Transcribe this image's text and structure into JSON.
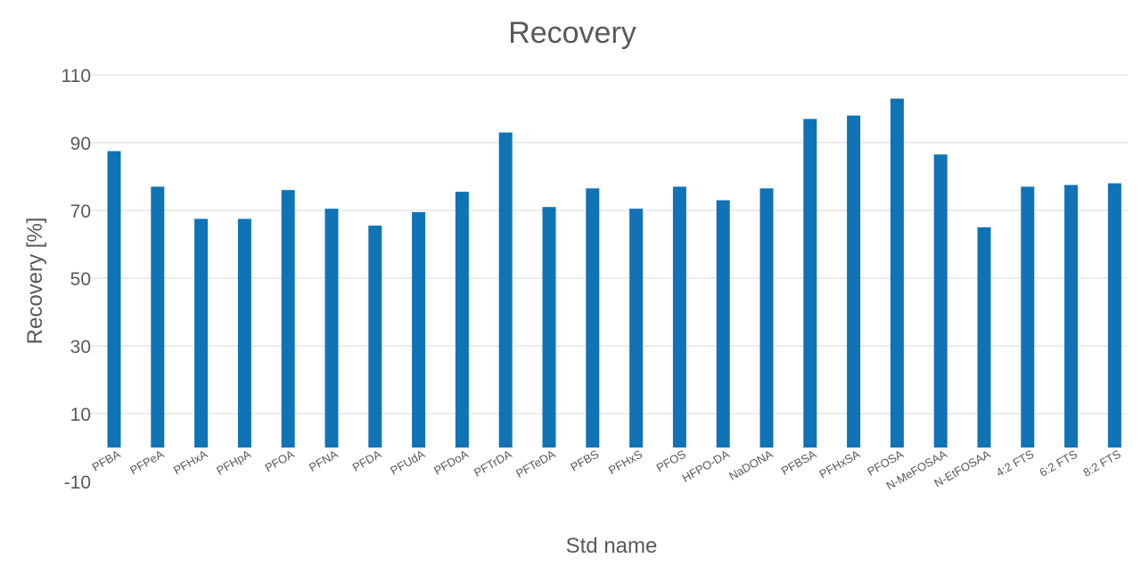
{
  "chart_data": {
    "type": "bar",
    "title": "Recovery",
    "xlabel": "Std name",
    "ylabel": "Recovery [%]",
    "ylim": [
      -10,
      110
    ],
    "yticks": [
      -10,
      10,
      30,
      50,
      70,
      90,
      110
    ],
    "grid": true,
    "bar_color": "#0f73b6",
    "categories": [
      "PFBA",
      "PFPeA",
      "PFHxA",
      "PFHpA",
      "PFOA",
      "PFNA",
      "PFDA",
      "PFUdA",
      "PFDoA",
      "PFTrDA",
      "PFTeDA",
      "PFBS",
      "PFHxS",
      "PFOS",
      "HFPO-DA",
      "NaDONA",
      "PFBSA",
      "PFHxSA",
      "PFOSA",
      "N-MeFOSAA",
      "N-EtFOSAA",
      "4:2 FTS",
      "6:2 FTS",
      "8:2 FTS"
    ],
    "values": [
      87.5,
      77,
      67.5,
      67.5,
      76,
      70.5,
      65.5,
      69.5,
      75.5,
      93,
      71,
      76.5,
      70.5,
      77,
      73,
      76.5,
      97,
      98,
      103,
      86.5,
      65,
      77,
      77.5,
      78
    ]
  }
}
